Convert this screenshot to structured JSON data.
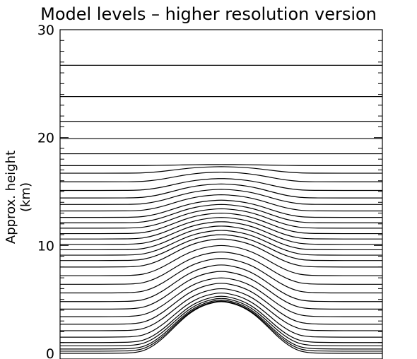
{
  "chart_data": {
    "type": "line",
    "title": "Model levels – higher resolution version",
    "xlabel": "",
    "ylabel": "Approx. height (km)",
    "ylim": [
      0,
      30
    ],
    "yticks": [
      0,
      10,
      20,
      30
    ],
    "x_ticks_labeled": false,
    "grid": false,
    "legend": "none",
    "x": [
      0,
      0.08,
      0.16,
      0.24,
      0.28,
      0.32,
      0.36,
      0.4,
      0.44,
      0.48,
      0.5,
      0.52,
      0.56,
      0.6,
      0.64,
      0.68,
      0.72,
      0.76,
      0.84,
      0.92,
      1.0
    ],
    "terrain": {
      "description": "Gaussian-like hill profile",
      "peak_height_km": 4.8,
      "values": [
        0,
        0,
        0,
        0.05,
        0.5,
        1.4,
        2.6,
        3.7,
        4.4,
        4.75,
        4.8,
        4.75,
        4.4,
        3.7,
        2.6,
        1.4,
        0.5,
        0.05,
        0,
        0,
        0
      ]
    },
    "level_flat_heights_km": [
      0.2,
      0.4,
      0.7,
      1.0,
      1.5,
      2.1,
      2.7,
      3.4,
      4.1,
      4.8,
      5.6,
      6.4,
      7.2,
      8.0,
      8.6,
      9.1,
      9.6,
      10.1,
      10.6,
      11.1,
      11.6,
      12.1,
      12.6,
      13.2,
      13.8,
      14.4,
      15.1,
      15.9,
      16.7,
      17.4,
      18.5,
      19.9,
      21.5,
      23.8,
      26.7
    ],
    "level_peak_heights_km": [
      4.85,
      4.95,
      5.1,
      5.3,
      5.6,
      6.0,
      6.5,
      7.0,
      7.6,
      8.2,
      8.8,
      9.4,
      10.0,
      10.6,
      11.0,
      11.4,
      11.8,
      12.2,
      12.6,
      13.0,
      13.4,
      13.8,
      14.2,
      14.7,
      15.2,
      15.7,
      16.2,
      16.8,
      17.3,
      17.5,
      18.5,
      19.9,
      21.5,
      23.8,
      26.7
    ],
    "colors": {
      "line": "#000000",
      "background": "#ffffff"
    }
  }
}
